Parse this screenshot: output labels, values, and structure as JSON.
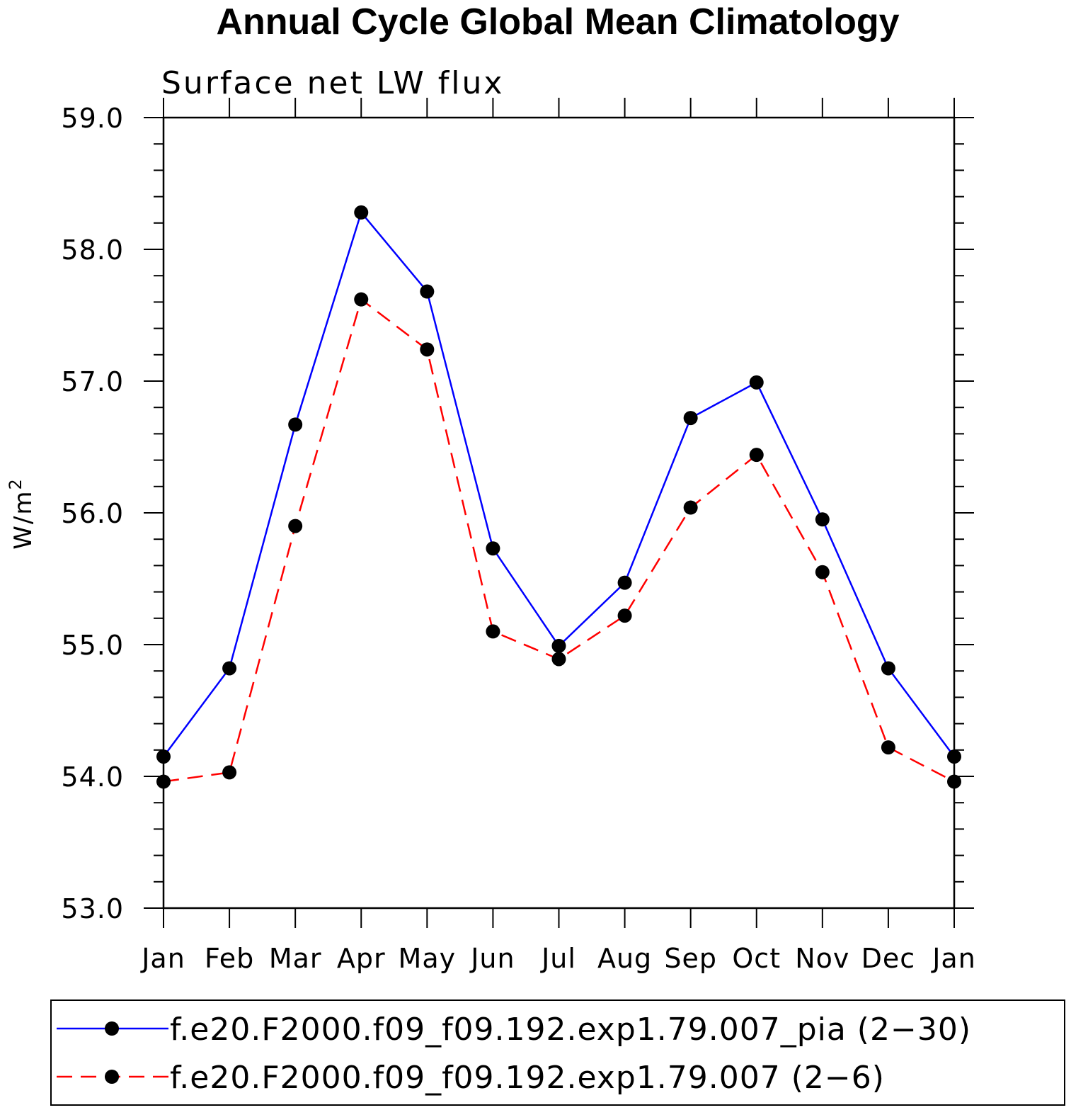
{
  "chart_data": {
    "type": "line",
    "title": "Annual Cycle Global Mean Climatology",
    "subtitle": "Surface net LW flux",
    "ylabel": "W/m",
    "ylabel_sup": "2",
    "ylim": [
      53.0,
      59.0
    ],
    "y_ticks": [
      "53.0",
      "54.0",
      "55.0",
      "56.0",
      "57.0",
      "58.0",
      "59.0"
    ],
    "categories": [
      "Jan",
      "Feb",
      "Mar",
      "Apr",
      "May",
      "Jun",
      "Jul",
      "Aug",
      "Sep",
      "Oct",
      "Nov",
      "Dec",
      "Jan"
    ],
    "grid": false,
    "legend_position": "bottom",
    "series": [
      {
        "name": "f.e20.F2000.f09_f09.192.exp1.79.007_pia (2−30)",
        "color": "#0000ff",
        "dash": "solid",
        "values": [
          54.15,
          54.82,
          56.67,
          58.28,
          57.68,
          55.73,
          54.99,
          55.47,
          56.72,
          56.99,
          55.95,
          54.82,
          54.15
        ]
      },
      {
        "name": "f.e20.F2000.f09_f09.192.exp1.79.007 (2−6)",
        "color": "#ff0000",
        "dash": "dashed",
        "values": [
          53.96,
          54.03,
          55.9,
          57.62,
          57.24,
          55.1,
          54.89,
          55.22,
          56.04,
          56.44,
          55.55,
          54.22,
          53.96
        ]
      }
    ]
  }
}
